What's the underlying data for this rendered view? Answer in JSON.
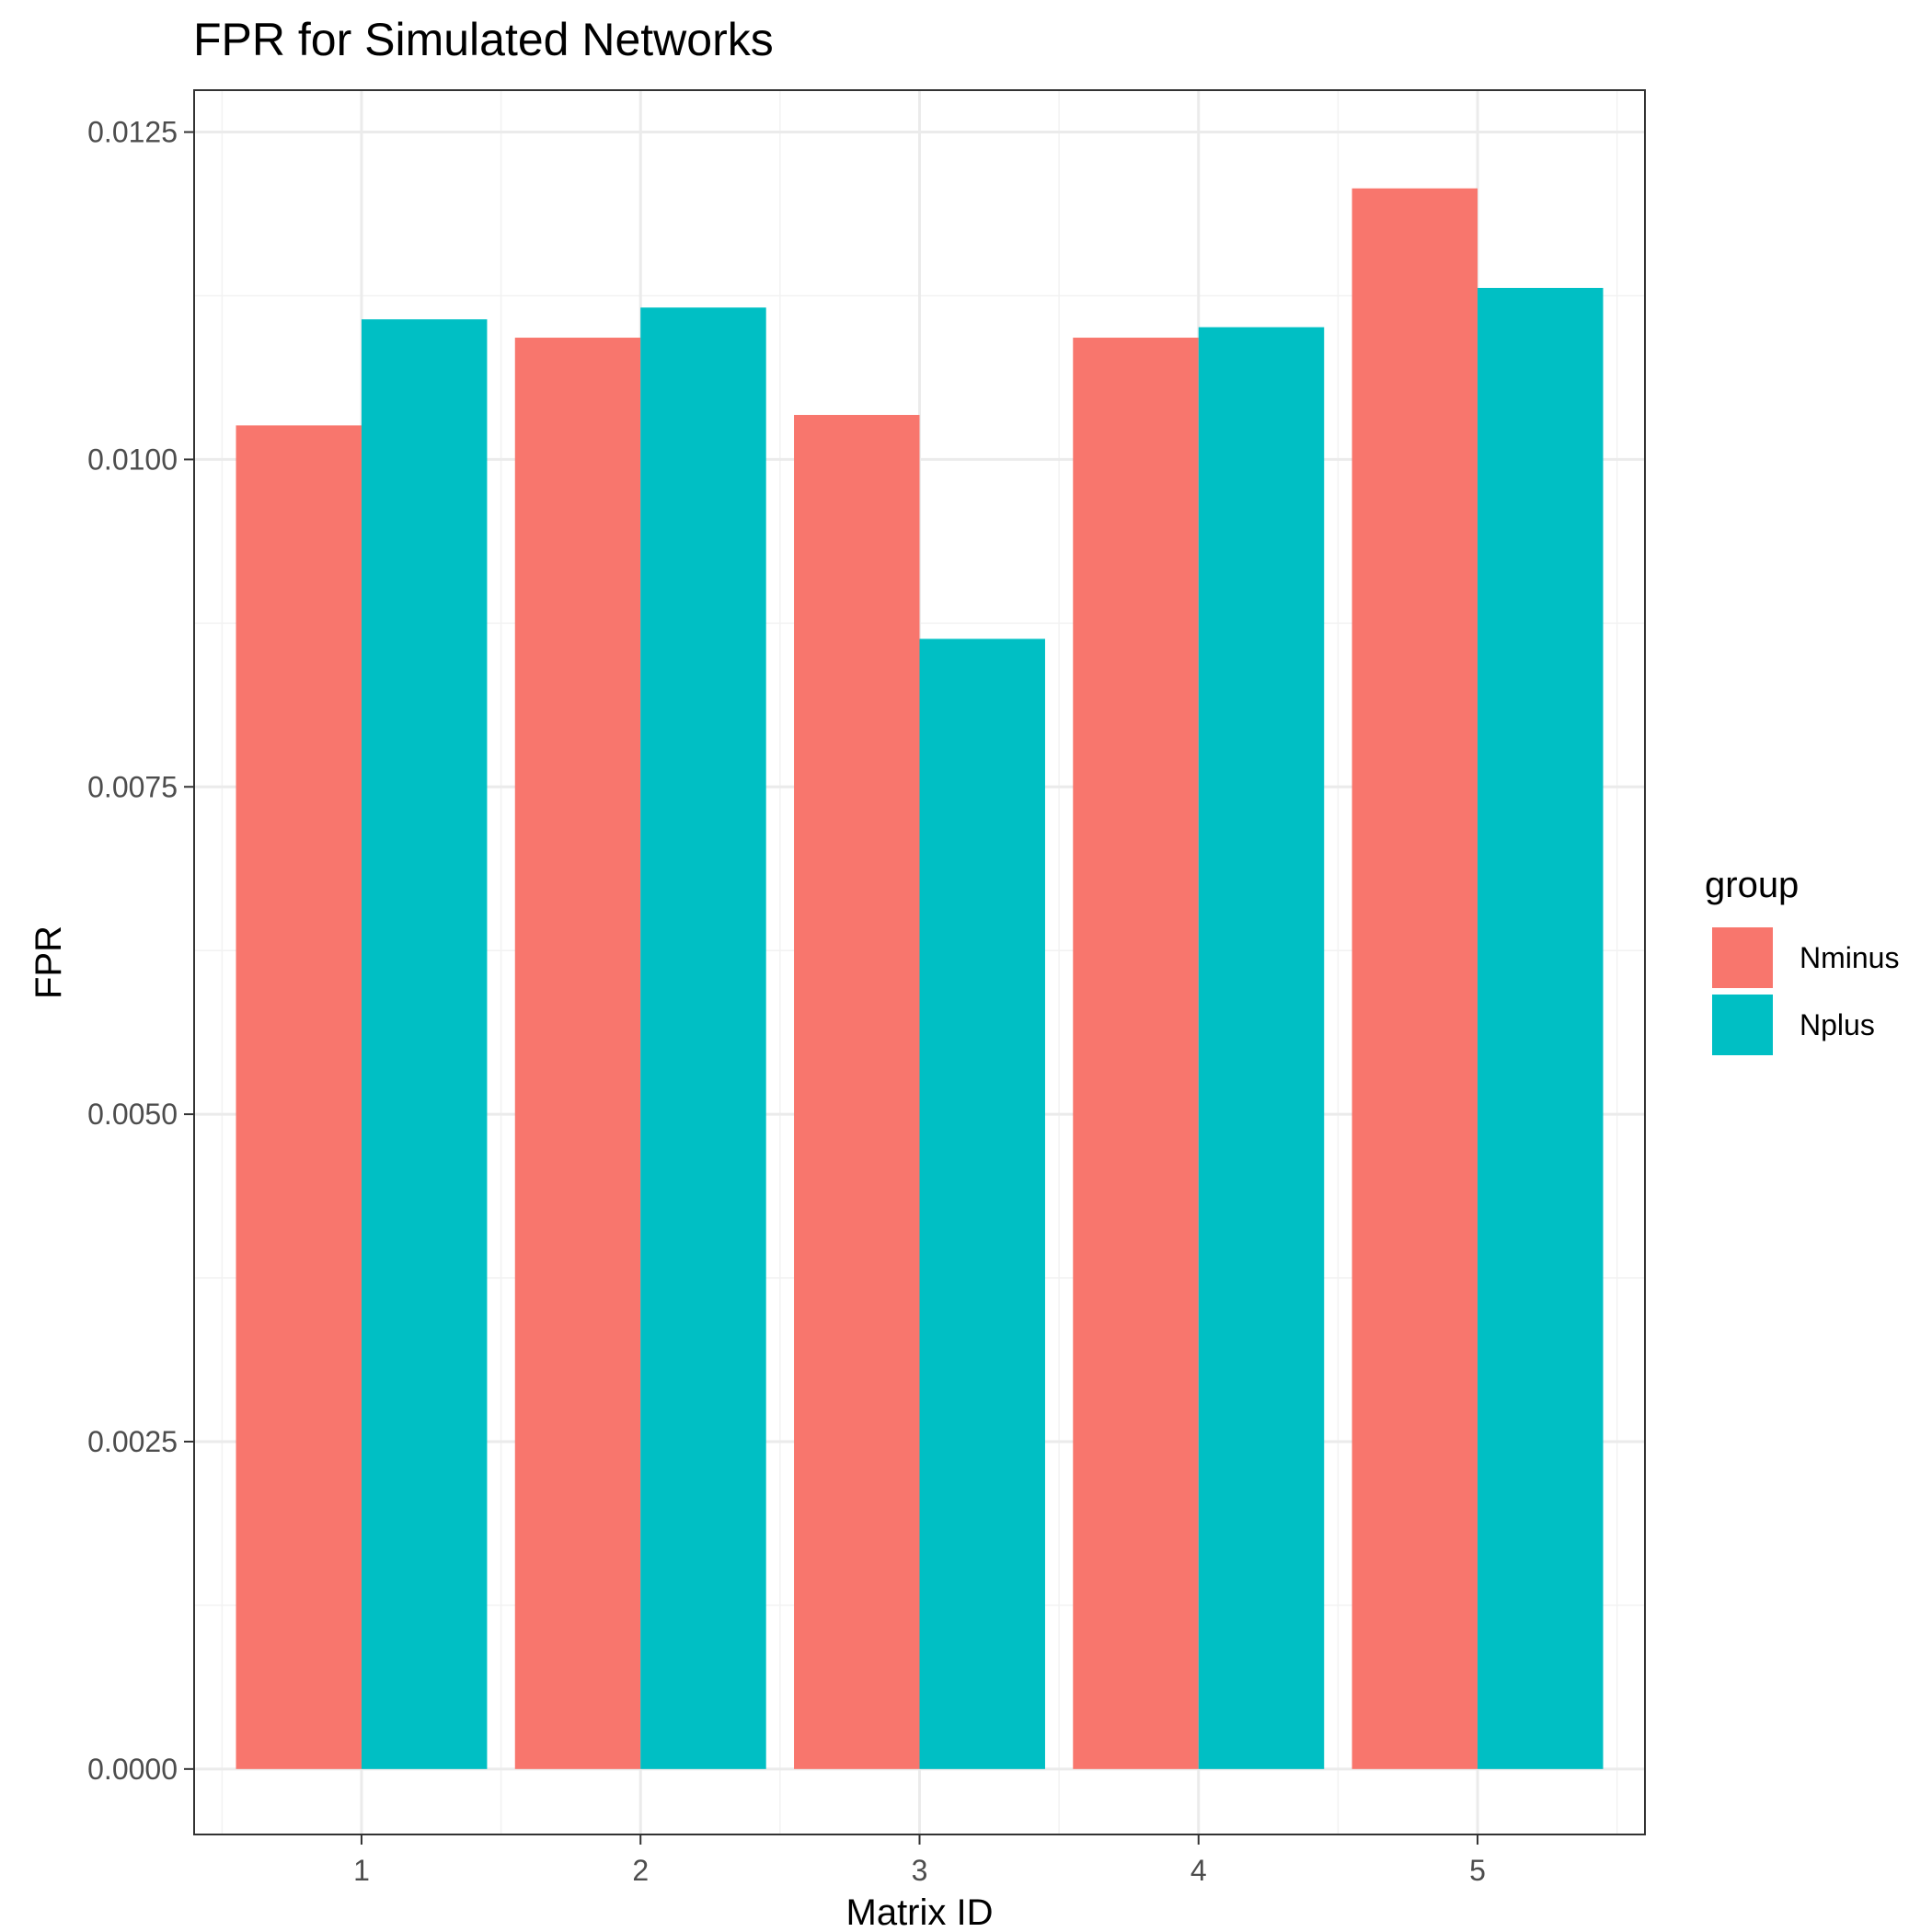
{
  "chart_data": {
    "type": "bar",
    "title": "FPR for Simulated Networks",
    "xlabel": "Matrix ID",
    "ylabel": "FPR",
    "categories": [
      "1",
      "2",
      "3",
      "4",
      "5"
    ],
    "series": [
      {
        "name": "Nminus",
        "color": "#F8766D",
        "values": [
          0.01026,
          0.01093,
          0.01034,
          0.01093,
          0.01207
        ]
      },
      {
        "name": "Nplus",
        "color": "#00BFC4",
        "values": [
          0.01107,
          0.01116,
          0.00863,
          0.01101,
          0.01131
        ]
      }
    ],
    "ylim": [
      -0.0005,
      0.01282
    ],
    "yticks": [
      "0.0000",
      "0.0025",
      "0.0050",
      "0.0075",
      "0.0100",
      "0.0125"
    ],
    "legend": {
      "title": "group",
      "position": "right"
    },
    "grid": true,
    "theme": "bw"
  }
}
